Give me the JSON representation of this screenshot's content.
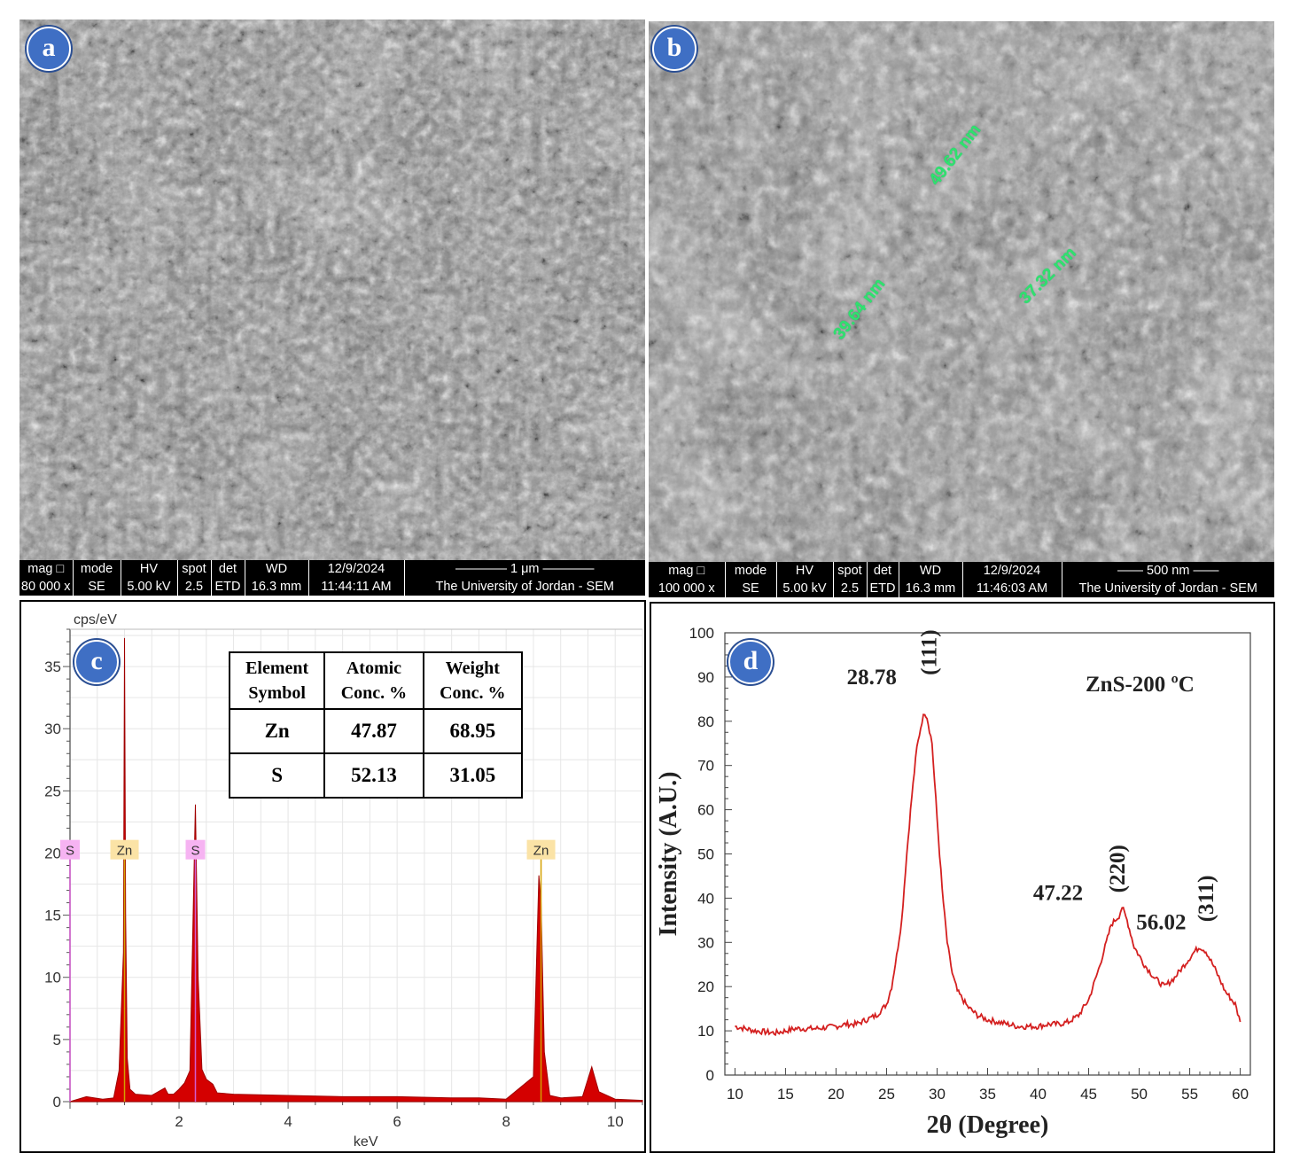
{
  "panels": {
    "a": {
      "label": "a",
      "info": {
        "headers": [
          "mag □",
          "mode",
          "HV",
          "spot",
          "det",
          "WD",
          "12/9/2024",
          "———— 1 μm ————"
        ],
        "values": [
          "80 000 x",
          "SE",
          "5.00 kV",
          "2.5",
          "ETD",
          "16.3 mm",
          "11:44:11 AM",
          "The University of Jordan - SEM"
        ]
      }
    },
    "b": {
      "label": "b",
      "info": {
        "headers": [
          "mag □",
          "mode",
          "HV",
          "spot",
          "det",
          "WD",
          "12/9/2024",
          "—— 500 nm ——"
        ],
        "values": [
          "100 000 x",
          "SE",
          "5.00 kV",
          "2.5",
          "ETD",
          "16.3 mm",
          "11:46:03 AM",
          "The University of Jordan - SEM"
        ]
      },
      "measurements": [
        "49.62 nm",
        "39.64 nm",
        "37.32 nm"
      ]
    },
    "c": {
      "label": "c",
      "eds_table": {
        "headers": [
          [
            "Element",
            "Symbol"
          ],
          [
            "Atomic",
            "Conc. %"
          ],
          [
            "Weight",
            "Conc. %"
          ]
        ],
        "rows": [
          {
            "element": "Zn",
            "atomic": "47.87",
            "weight": "68.95"
          },
          {
            "element": "S",
            "atomic": "52.13",
            "weight": "31.05"
          }
        ]
      }
    },
    "d": {
      "label": "d"
    }
  },
  "chart_data": [
    {
      "type": "line",
      "panel": "c",
      "ylabel": "cps/eV",
      "xlabel": "keV",
      "xlim": [
        0,
        10.5
      ],
      "ylim": [
        0,
        38
      ],
      "xticks": [
        2,
        4,
        6,
        8,
        10
      ],
      "yticks": [
        0,
        5,
        10,
        15,
        20,
        25,
        30,
        35
      ],
      "grid": true,
      "series": [
        {
          "x": [
            0.0,
            0.3,
            0.6,
            0.8,
            0.9,
            0.98,
            1.0,
            1.02,
            1.05,
            1.1,
            1.2,
            1.5,
            1.74,
            1.8,
            1.9,
            2.0,
            2.1,
            2.2,
            2.3,
            2.35,
            2.42,
            2.5,
            2.62,
            2.7,
            3.0,
            4.0,
            5.0,
            6.0,
            7.0,
            7.5,
            8.0,
            8.5,
            8.6,
            8.64,
            8.7,
            8.8,
            9.0,
            9.4,
            9.57,
            9.7,
            10.0,
            10.5
          ],
          "y": [
            0,
            0.4,
            0.2,
            0.3,
            2.5,
            12,
            37.3,
            15,
            3.5,
            1.0,
            0.6,
            0.5,
            1.1,
            0.6,
            0.6,
            1.0,
            1.5,
            2.5,
            23.9,
            10,
            2.6,
            1.8,
            1.4,
            0.7,
            0.6,
            0.5,
            0.4,
            0.4,
            0.3,
            0.3,
            0.2,
            2.0,
            18.2,
            16,
            4.0,
            0.5,
            0.3,
            0.4,
            2.8,
            0.8,
            0.2,
            0.1
          ]
        }
      ],
      "peak_labels": [
        {
          "text": "S",
          "x": 0.0,
          "y": 20.2
        },
        {
          "text": "Zn",
          "x": 1.0,
          "y": 20.2
        },
        {
          "text": "S",
          "x": 2.3,
          "y": 20.2
        },
        {
          "text": "Zn",
          "x": 8.64,
          "y": 20.2
        }
      ],
      "colors": {
        "fill": "#d40000",
        "peak_line": "#f5c400",
        "zn_label_bg": "#fbe3a6",
        "s_label_bg": "#f6b3f2"
      }
    },
    {
      "type": "line",
      "panel": "d",
      "xlabel": "2θ (Degree)",
      "ylabel": "Intensity (A.U.)",
      "xlim": [
        9,
        61
      ],
      "ylim": [
        0,
        100
      ],
      "xticks": [
        10,
        15,
        20,
        25,
        30,
        35,
        40,
        45,
        50,
        55,
        60
      ],
      "yticks": [
        0,
        10,
        20,
        30,
        40,
        50,
        60,
        70,
        80,
        90,
        100
      ],
      "legend": "ZnS-200 ºC",
      "series": [
        {
          "name": "ZnS-200 ºC",
          "color": "#d42020",
          "x": [
            10,
            12,
            14,
            16,
            18,
            20,
            21,
            22,
            23,
            24,
            25,
            25.5,
            26,
            26.5,
            27,
            27.5,
            28,
            28.5,
            28.78,
            29,
            29.5,
            30,
            30.5,
            31,
            31.5,
            32,
            33,
            34,
            35,
            36,
            37,
            38,
            39,
            40,
            41,
            42,
            43,
            44,
            45,
            46,
            47,
            47.22,
            48,
            48.3,
            48.8,
            49.5,
            50.5,
            51.5,
            52.5,
            53.5,
            54.5,
            55.5,
            56.02,
            56.6,
            57.5,
            58.5,
            59.5,
            60
          ],
          "y": [
            11,
            10,
            9.5,
            10.5,
            10.5,
            11,
            11.5,
            11.5,
            12.5,
            13.5,
            16,
            20,
            27,
            35,
            50,
            63,
            74,
            80,
            82,
            81,
            75,
            58,
            42,
            30,
            23,
            19,
            15.5,
            13.5,
            12.5,
            12,
            11.5,
            11,
            11,
            11,
            11.5,
            11.5,
            12,
            13.5,
            17,
            24,
            32,
            34,
            36,
            38,
            35,
            29,
            25,
            22,
            20,
            22,
            25,
            28,
            29,
            28,
            24,
            19,
            16,
            12
          ]
        }
      ],
      "peak_annotations": [
        {
          "position": "28.78",
          "hkl": "(111)",
          "x": 28.78,
          "y": 82
        },
        {
          "position": "47.22",
          "hkl": "(220)",
          "x": 47.22,
          "y": 34
        },
        {
          "position": "56.02",
          "hkl": "(311)",
          "x": 56.02,
          "y": 29
        }
      ]
    }
  ]
}
